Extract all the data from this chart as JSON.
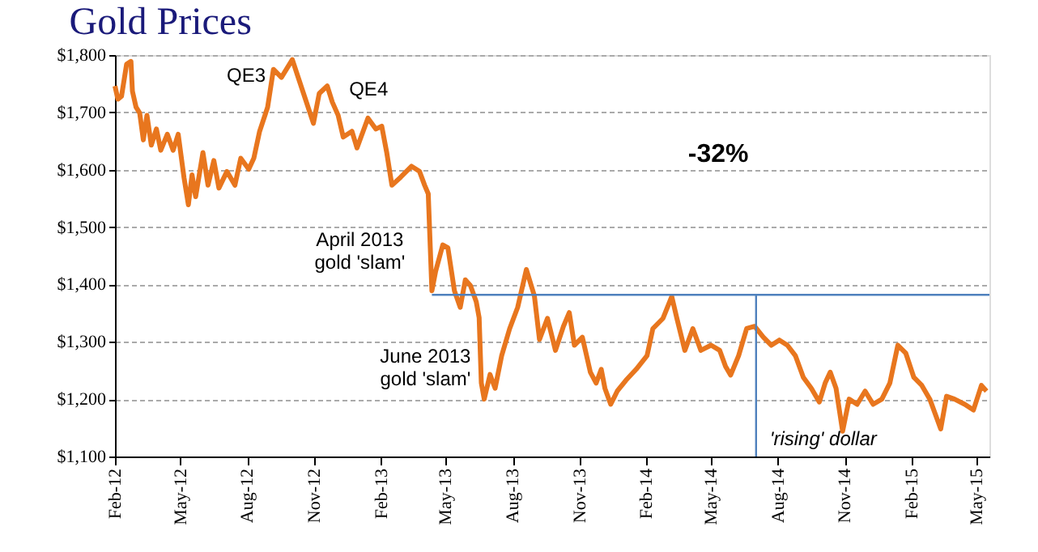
{
  "chart_data": {
    "type": "line",
    "title": "Gold Prices",
    "xlim": [
      "2012-02-01",
      "2015-05-19"
    ],
    "xticks": [
      {
        "value": "2012-02-01",
        "label": "Feb-12"
      },
      {
        "value": "2012-05-01",
        "label": "May-12"
      },
      {
        "value": "2012-08-01",
        "label": "Aug-12"
      },
      {
        "value": "2012-11-01",
        "label": "Nov-12"
      },
      {
        "value": "2013-02-01",
        "label": "Feb-13"
      },
      {
        "value": "2013-05-01",
        "label": "May-13"
      },
      {
        "value": "2013-08-01",
        "label": "Aug-13"
      },
      {
        "value": "2013-11-01",
        "label": "Nov-13"
      },
      {
        "value": "2014-02-01",
        "label": "Feb-14"
      },
      {
        "value": "2014-05-01",
        "label": "May-14"
      },
      {
        "value": "2014-08-01",
        "label": "Aug-14"
      },
      {
        "value": "2014-11-01",
        "label": "Nov-14"
      },
      {
        "value": "2015-02-01",
        "label": "Feb-15"
      },
      {
        "value": "2015-05-01",
        "label": "May-15"
      }
    ],
    "ylim": [
      1100,
      1800
    ],
    "yticks": [
      {
        "value": 1100,
        "label": "$1,100"
      },
      {
        "value": 1200,
        "label": "$1,200"
      },
      {
        "value": 1300,
        "label": "$1,300"
      },
      {
        "value": 1400,
        "label": "$1,400"
      },
      {
        "value": 1500,
        "label": "$1,500"
      },
      {
        "value": 1600,
        "label": "$1,600"
      },
      {
        "value": 1700,
        "label": "$1,700"
      },
      {
        "value": 1800,
        "label": "$1,800"
      }
    ],
    "grid": "y",
    "line_style": "solid",
    "marker": "none",
    "series": [
      {
        "color": "#e8761e",
        "x": [
          "2012-02-01",
          "2012-02-05",
          "2012-02-10",
          "2012-02-17",
          "2012-02-23",
          "2012-02-25",
          "2012-03-01",
          "2012-03-06",
          "2012-03-11",
          "2012-03-16",
          "2012-03-22",
          "2012-03-29",
          "2012-04-04",
          "2012-04-13",
          "2012-04-21",
          "2012-04-28",
          "2012-05-06",
          "2012-05-12",
          "2012-05-17",
          "2012-05-22",
          "2012-06-01",
          "2012-06-08",
          "2012-06-16",
          "2012-06-23",
          "2012-07-04",
          "2012-07-15",
          "2012-07-23",
          "2012-08-03",
          "2012-08-10",
          "2012-08-18",
          "2012-08-29",
          "2012-09-06",
          "2012-09-17",
          "2012-10-02",
          "2012-10-09",
          "2012-10-20",
          "2012-10-31",
          "2012-11-08",
          "2012-11-19",
          "2012-11-26",
          "2012-12-04",
          "2012-12-11",
          "2012-12-23",
          "2012-12-30",
          "2013-01-14",
          "2013-01-25",
          "2013-02-02",
          "2013-02-09",
          "2013-02-16",
          "2013-02-28",
          "2013-03-15",
          "2013-03-26",
          "2013-04-02",
          "2013-04-07",
          "2013-04-12",
          "2013-04-17",
          "2013-04-27",
          "2013-05-04",
          "2013-05-13",
          "2013-05-21",
          "2013-05-28",
          "2013-06-04",
          "2013-06-12",
          "2013-06-16",
          "2013-06-19",
          "2013-06-23",
          "2013-07-01",
          "2013-07-08",
          "2013-07-17",
          "2013-07-28",
          "2013-08-08",
          "2013-08-20",
          "2013-08-31",
          "2013-09-07",
          "2013-09-18",
          "2013-09-29",
          "2013-10-10",
          "2013-10-18",
          "2013-10-25",
          "2013-11-05",
          "2013-11-16",
          "2013-11-24",
          "2013-12-01",
          "2013-12-06",
          "2013-12-14",
          "2013-12-23",
          "2014-01-04",
          "2014-01-18",
          "2014-02-02",
          "2014-02-10",
          "2014-02-24",
          "2014-03-08",
          "2014-03-15",
          "2014-03-26",
          "2014-04-06",
          "2014-04-17",
          "2014-05-01",
          "2014-05-13",
          "2014-05-21",
          "2014-05-28",
          "2014-06-08",
          "2014-06-19",
          "2014-06-30",
          "2014-07-12",
          "2014-07-23",
          "2014-08-03",
          "2014-08-14",
          "2014-08-25",
          "2014-09-05",
          "2014-09-16",
          "2014-09-27",
          "2014-10-05",
          "2014-10-12",
          "2014-10-20",
          "2014-10-29",
          "2014-11-07",
          "2014-11-18",
          "2014-11-29",
          "2014-12-10",
          "2014-12-22",
          "2015-01-02",
          "2015-01-13",
          "2015-01-24",
          "2015-02-04",
          "2015-02-15",
          "2015-02-26",
          "2015-03-13",
          "2015-03-21",
          "2015-04-01",
          "2015-04-15",
          "2015-04-27",
          "2015-05-08",
          "2015-05-15"
        ],
        "values": [
          1746,
          1723,
          1728,
          1784,
          1789,
          1737,
          1709,
          1699,
          1652,
          1695,
          1643,
          1671,
          1634,
          1662,
          1634,
          1662,
          1586,
          1539,
          1591,
          1553,
          1630,
          1573,
          1616,
          1568,
          1597,
          1573,
          1620,
          1601,
          1620,
          1667,
          1709,
          1775,
          1761,
          1792,
          1765,
          1723,
          1681,
          1733,
          1746,
          1718,
          1695,
          1657,
          1667,
          1638,
          1690,
          1671,
          1676,
          1629,
          1573,
          1587,
          1606,
          1597,
          1573,
          1558,
          1389,
          1422,
          1469,
          1464,
          1389,
          1360,
          1408,
          1398,
          1370,
          1342,
          1228,
          1200,
          1243,
          1219,
          1276,
          1323,
          1360,
          1426,
          1380,
          1304,
          1341,
          1285,
          1327,
          1351,
          1294,
          1308,
          1247,
          1228,
          1252,
          1219,
          1191,
          1214,
          1233,
          1252,
          1276,
          1323,
          1341,
          1379,
          1341,
          1285,
          1323,
          1285,
          1294,
          1285,
          1257,
          1242,
          1276,
          1323,
          1327,
          1308,
          1294,
          1303,
          1294,
          1276,
          1238,
          1219,
          1195,
          1228,
          1247,
          1219,
          1144,
          1200,
          1191,
          1214,
          1191,
          1200,
          1228,
          1294,
          1280,
          1238,
          1224,
          1200,
          1148,
          1205,
          1200,
          1191,
          1181,
          1224,
          1214
        ]
      },
      {
        "color": "#4f81bd",
        "x": [
          "2013-04-12",
          "2015-05-19"
        ],
        "values": [
          1382,
          1382
        ]
      },
      {
        "color": "#4f81bd",
        "x": [
          "2014-07-02",
          "2014-07-02"
        ],
        "values": [
          1382,
          1100
        ]
      }
    ],
    "annotations": [
      "QE3",
      "QE4",
      "April 2013\ngold 'slam'",
      "June 2013\ngold 'slam'",
      "-32%",
      "'rising' dollar"
    ]
  }
}
